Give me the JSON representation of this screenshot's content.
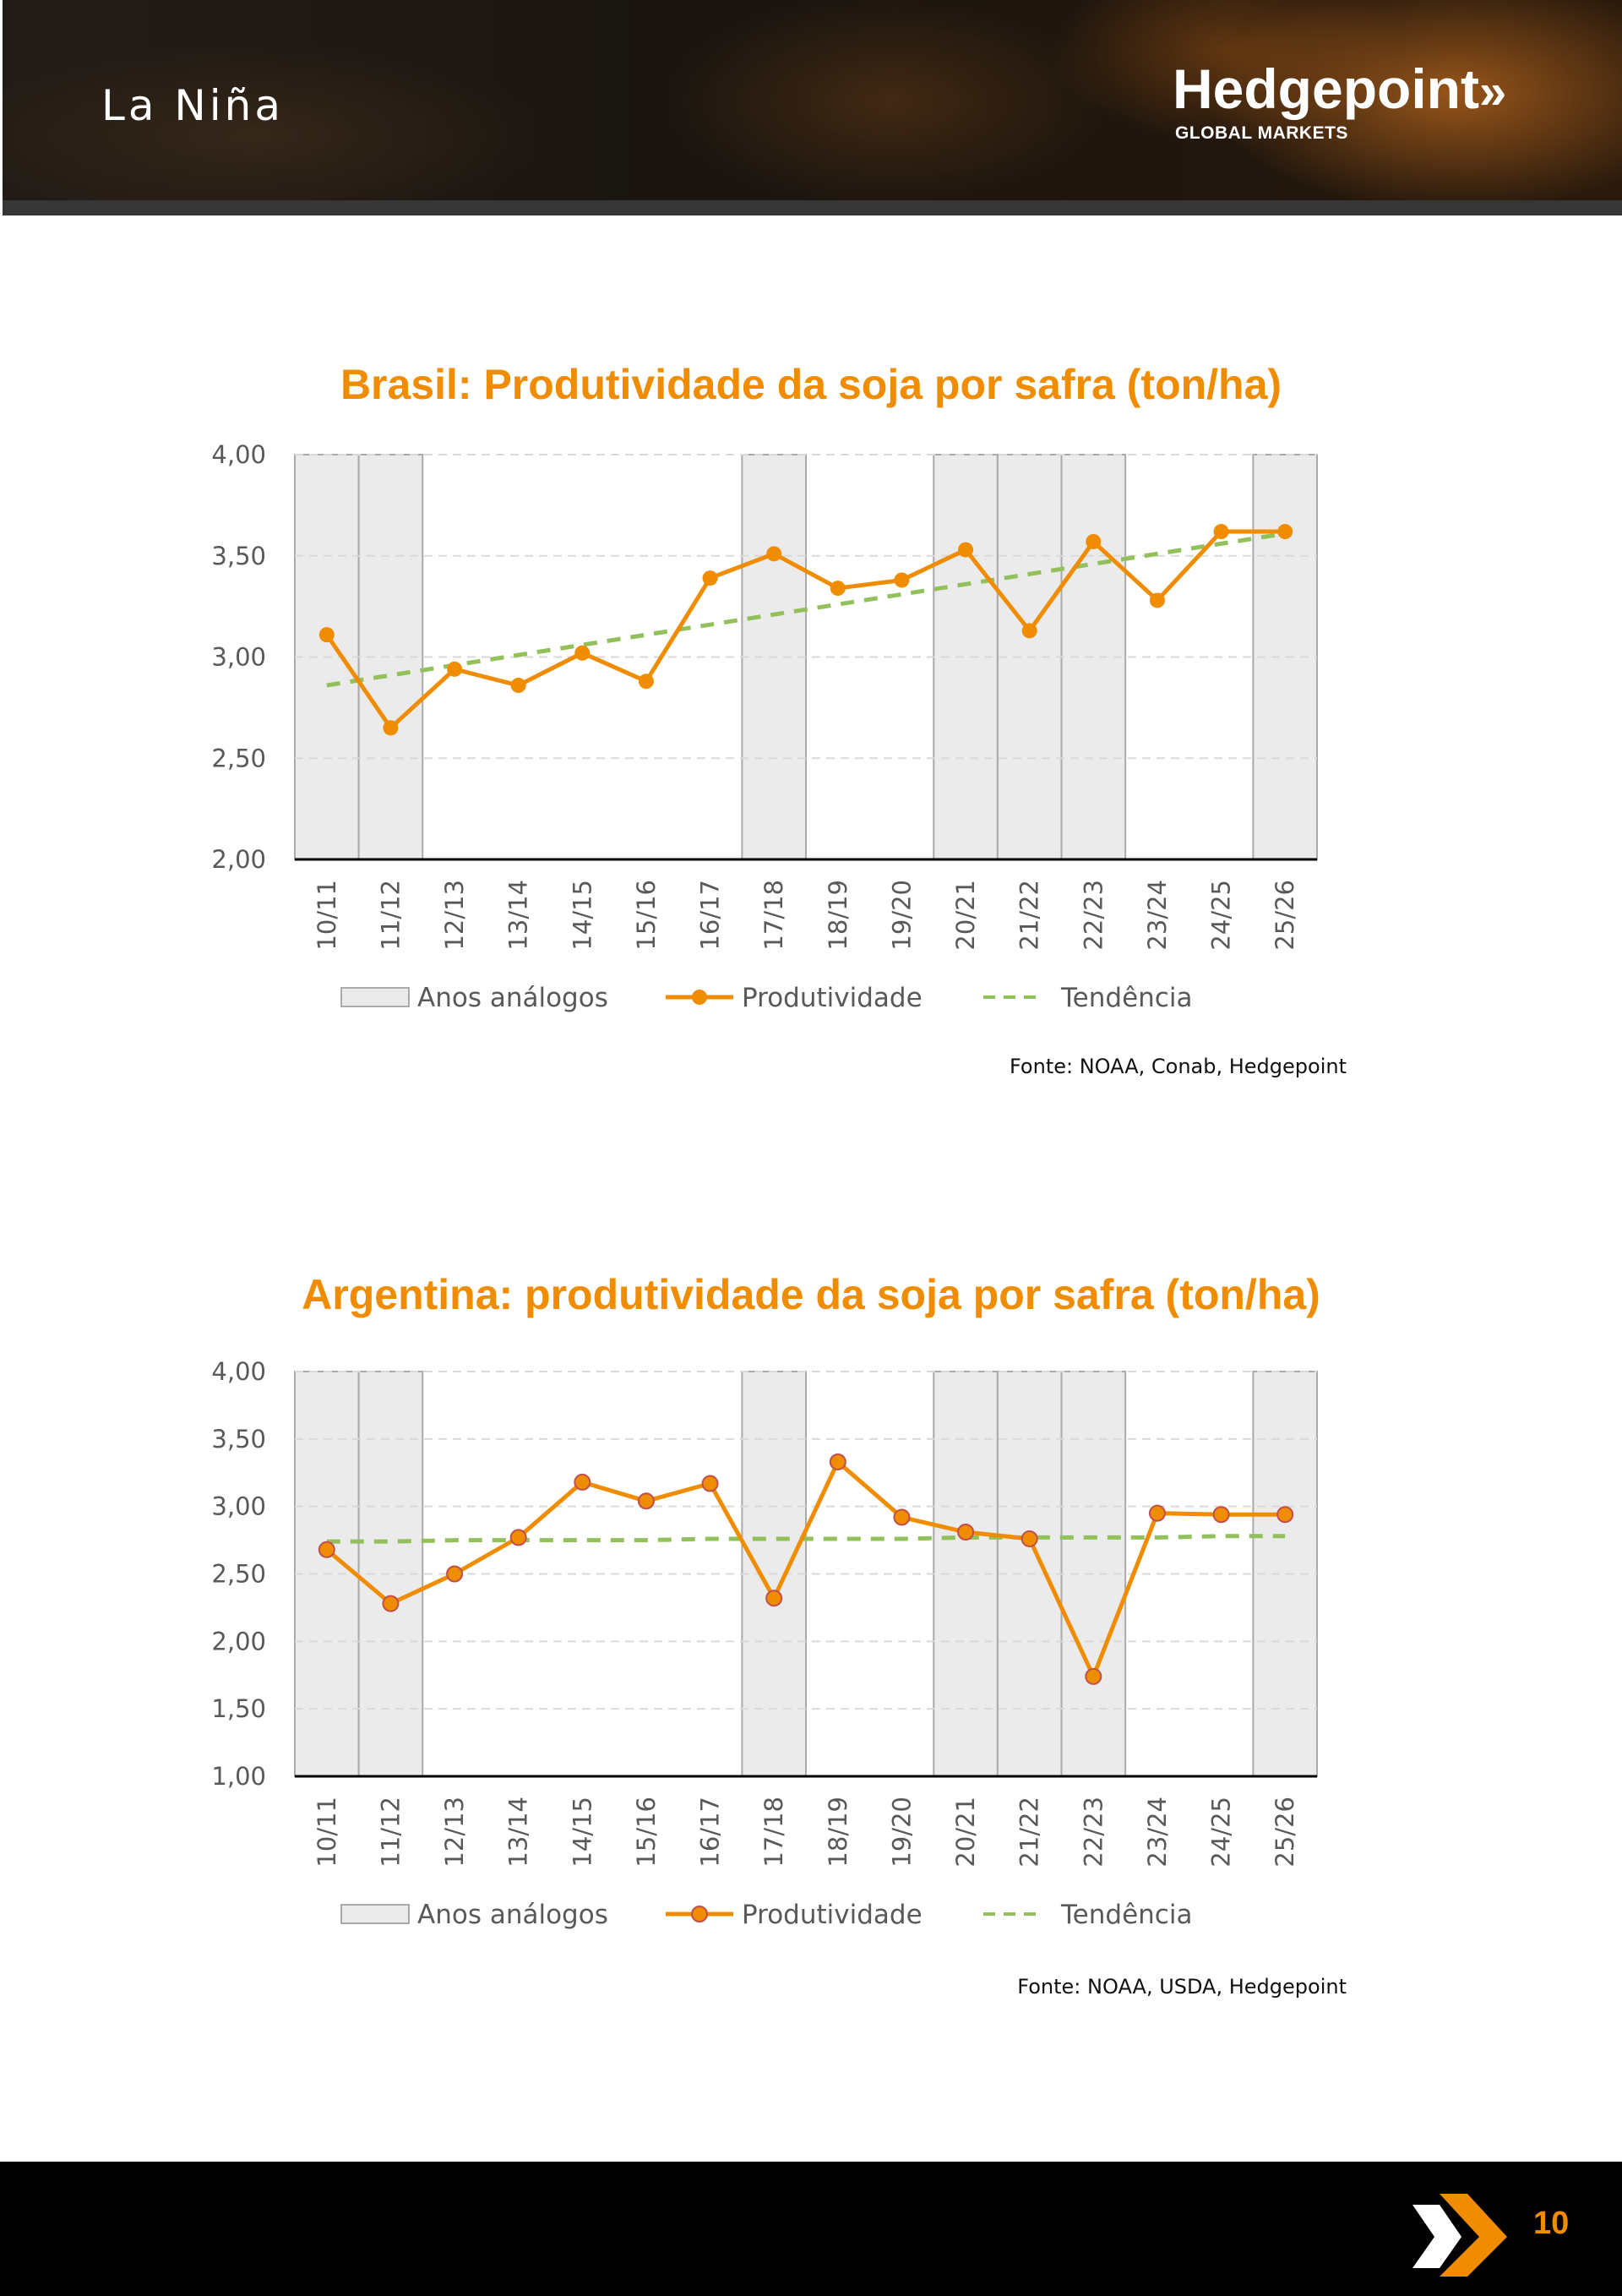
{
  "header": {
    "title": "La Niña",
    "brand_name": "Hedgepoint",
    "brand_chevron": "»",
    "brand_sub": "GLOBAL MARKETS"
  },
  "colors": {
    "accent": "#ef8c00",
    "trend": "#92c05a",
    "analog_fill": "#ebebeb",
    "analog_stroke": "#aaaaaa",
    "grid": "#d9d9d9",
    "marker_stroke_argentina": "#c0504d"
  },
  "chart_data": [
    {
      "id": "brasil",
      "type": "line",
      "title": "Brasil: Produtividade da soja por safra (ton/ha)",
      "xlabel": "",
      "ylabel": "",
      "categories": [
        "10/11",
        "11/12",
        "12/13",
        "13/14",
        "14/15",
        "15/16",
        "16/17",
        "17/18",
        "18/19",
        "19/20",
        "20/21",
        "21/22",
        "22/23",
        "23/24",
        "24/25",
        "25/26"
      ],
      "ylim": [
        2.0,
        4.0
      ],
      "yticks": [
        2.0,
        2.5,
        3.0,
        3.5,
        4.0
      ],
      "ytick_labels": [
        "2,00",
        "2,50",
        "3,00",
        "3,50",
        "4,00"
      ],
      "grid": true,
      "analog_years": [
        "10/11",
        "11/12",
        "17/18",
        "20/21",
        "21/22",
        "22/23",
        "25/26"
      ],
      "series": [
        {
          "name": "Produtividade",
          "values": [
            3.11,
            2.65,
            2.94,
            2.86,
            3.02,
            2.88,
            3.39,
            3.51,
            3.34,
            3.38,
            3.53,
            3.13,
            3.57,
            3.28,
            3.62,
            3.62
          ]
        },
        {
          "name": "Tendência",
          "style": "dashed",
          "values": [
            2.86,
            2.91,
            2.96,
            3.01,
            3.06,
            3.11,
            3.16,
            3.21,
            3.26,
            3.31,
            3.36,
            3.41,
            3.46,
            3.51,
            3.56,
            3.61
          ]
        }
      ],
      "legend": {
        "position": "bottom",
        "items": [
          {
            "label": "Anos análogos",
            "kind": "box"
          },
          {
            "label": "Produtividade",
            "kind": "line-marker"
          },
          {
            "label": "Tendência",
            "kind": "dashed"
          }
        ]
      },
      "source": "Fonte: NOAA, Conab, Hedgepoint"
    },
    {
      "id": "argentina",
      "type": "line",
      "title": "Argentina: produtividade da soja por safra (ton/ha)",
      "xlabel": "",
      "ylabel": "",
      "categories": [
        "10/11",
        "11/12",
        "12/13",
        "13/14",
        "14/15",
        "15/16",
        "16/17",
        "17/18",
        "18/19",
        "19/20",
        "20/21",
        "21/22",
        "22/23",
        "23/24",
        "24/25",
        "25/26"
      ],
      "ylim": [
        1.0,
        4.0
      ],
      "yticks": [
        1.0,
        1.5,
        2.0,
        2.5,
        3.0,
        3.5,
        4.0
      ],
      "ytick_labels": [
        "1,00",
        "1,50",
        "2,00",
        "2,50",
        "3,00",
        "3,50",
        "4,00"
      ],
      "grid": true,
      "analog_years": [
        "10/11",
        "11/12",
        "17/18",
        "20/21",
        "21/22",
        "22/23",
        "25/26"
      ],
      "series": [
        {
          "name": "Produtividade",
          "values": [
            2.68,
            2.28,
            2.5,
            2.77,
            3.18,
            3.04,
            3.17,
            2.32,
            3.33,
            2.92,
            2.81,
            2.76,
            1.74,
            2.95,
            2.94,
            2.94
          ]
        },
        {
          "name": "Tendência",
          "style": "dashed",
          "values": [
            2.74,
            2.74,
            2.75,
            2.75,
            2.75,
            2.75,
            2.76,
            2.76,
            2.76,
            2.76,
            2.77,
            2.77,
            2.77,
            2.77,
            2.78,
            2.78
          ]
        }
      ],
      "legend": {
        "position": "bottom",
        "items": [
          {
            "label": "Anos análogos",
            "kind": "box"
          },
          {
            "label": "Produtividade",
            "kind": "line-marker"
          },
          {
            "label": "Tendência",
            "kind": "dashed"
          }
        ]
      },
      "source": "Fonte: NOAA, USDA, Hedgepoint"
    }
  ],
  "footer": {
    "page_number": "10"
  }
}
